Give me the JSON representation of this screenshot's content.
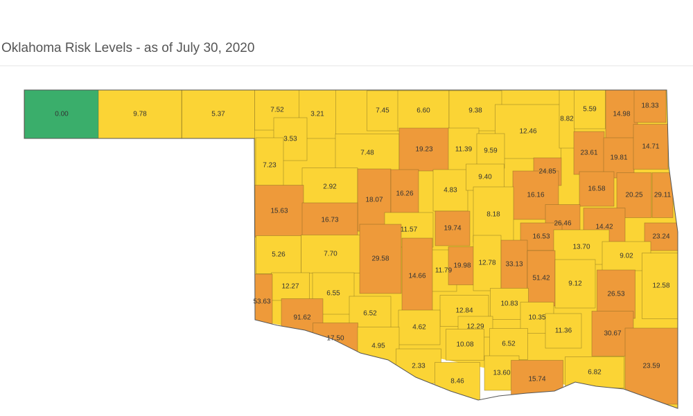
{
  "title": "Oklahoma Risk Levels - as of July 30, 2020",
  "counties": [
    {
      "label": "0.00",
      "color": "#3aae6b"
    },
    {
      "label": "9.78",
      "color": "#fbd435"
    },
    {
      "label": "5.37",
      "color": "#fbd435"
    },
    {
      "label": "7.52",
      "color": "#fbd435"
    },
    {
      "label": "3.21",
      "color": "#fbd435"
    },
    {
      "label": "7.45",
      "color": "#fbd435"
    },
    {
      "label": "6.60",
      "color": "#fbd435"
    },
    {
      "label": "9.38",
      "color": "#fbd435"
    },
    {
      "label": "12.46",
      "color": "#fbd435"
    },
    {
      "label": "8.82",
      "color": "#fbd435"
    },
    {
      "label": "5.59",
      "color": "#fbd435"
    },
    {
      "label": "14.98",
      "color": "#ee9a3a"
    },
    {
      "label": "18.33",
      "color": "#ee9a3a"
    },
    {
      "label": "3.53",
      "color": "#fbd435"
    },
    {
      "label": "7.48",
      "color": "#fbd435"
    },
    {
      "label": "19.23",
      "color": "#ee9a3a"
    },
    {
      "label": "11.39",
      "color": "#fbd435"
    },
    {
      "label": "9.59",
      "color": "#fbd435"
    },
    {
      "label": "7.23",
      "color": "#fbd435"
    },
    {
      "label": "23.61",
      "color": "#ee9a3a"
    },
    {
      "label": "19.81",
      "color": "#ee9a3a"
    },
    {
      "label": "14.71",
      "color": "#ee9a3a"
    },
    {
      "label": "24.85",
      "color": "#ee9a3a"
    },
    {
      "label": "2.92",
      "color": "#fbd435"
    },
    {
      "label": "18.07",
      "color": "#ee9a3a"
    },
    {
      "label": "16.26",
      "color": "#ee9a3a"
    },
    {
      "label": "4.83",
      "color": "#fbd435"
    },
    {
      "label": "9.40",
      "color": "#fbd435"
    },
    {
      "label": "16.16",
      "color": "#ee9a3a"
    },
    {
      "label": "16.58",
      "color": "#ee9a3a"
    },
    {
      "label": "20.25",
      "color": "#ee9a3a"
    },
    {
      "label": "29.11",
      "color": "#ee9a3a"
    },
    {
      "label": "15.63",
      "color": "#ee9a3a"
    },
    {
      "label": "16.73",
      "color": "#ee9a3a"
    },
    {
      "label": "11.57",
      "color": "#fbd435"
    },
    {
      "label": "19.74",
      "color": "#ee9a3a"
    },
    {
      "label": "8.18",
      "color": "#fbd435"
    },
    {
      "label": "26.46",
      "color": "#ee9a3a"
    },
    {
      "label": "14.42",
      "color": "#ee9a3a"
    },
    {
      "label": "23.24",
      "color": "#ee9a3a"
    },
    {
      "label": "16.53",
      "color": "#ee9a3a"
    },
    {
      "label": "5.26",
      "color": "#fbd435"
    },
    {
      "label": "7.70",
      "color": "#fbd435"
    },
    {
      "label": "29.58",
      "color": "#ee9a3a"
    },
    {
      "label": "11.79",
      "color": "#fbd435"
    },
    {
      "label": "19.98",
      "color": "#ee9a3a"
    },
    {
      "label": "12.78",
      "color": "#fbd435"
    },
    {
      "label": "33.13",
      "color": "#ee9a3a"
    },
    {
      "label": "13.70",
      "color": "#fbd435"
    },
    {
      "label": "9.02",
      "color": "#fbd435"
    },
    {
      "label": "51.42",
      "color": "#ee9a3a"
    },
    {
      "label": "14.66",
      "color": "#ee9a3a"
    },
    {
      "label": "12.27",
      "color": "#fbd435"
    },
    {
      "label": "6.55",
      "color": "#fbd435"
    },
    {
      "label": "53.63",
      "color": "#ee9a3a"
    },
    {
      "label": "9.12",
      "color": "#fbd435"
    },
    {
      "label": "26.53",
      "color": "#ee9a3a"
    },
    {
      "label": "12.58",
      "color": "#fbd435"
    },
    {
      "label": "91.62",
      "color": "#ee9a3a"
    },
    {
      "label": "6.52",
      "color": "#fbd435"
    },
    {
      "label": "12.84",
      "color": "#fbd435"
    },
    {
      "label": "10.83",
      "color": "#fbd435"
    },
    {
      "label": "10.35",
      "color": "#fbd435"
    },
    {
      "label": "4.62",
      "color": "#fbd435"
    },
    {
      "label": "12.29",
      "color": "#fbd435"
    },
    {
      "label": "11.36",
      "color": "#fbd435"
    },
    {
      "label": "30.67",
      "color": "#ee9a3a"
    },
    {
      "label": "17.50",
      "color": "#ee9a3a"
    },
    {
      "label": "4.95",
      "color": "#fbd435"
    },
    {
      "label": "10.08",
      "color": "#fbd435"
    },
    {
      "label": "6.52",
      "color": "#fbd435"
    },
    {
      "label": "2.33",
      "color": "#fbd435"
    },
    {
      "label": "8.46",
      "color": "#fbd435"
    },
    {
      "label": "13.60",
      "color": "#fbd435"
    },
    {
      "label": "15.74",
      "color": "#ee9a3a"
    },
    {
      "label": "6.82",
      "color": "#fbd435"
    },
    {
      "label": "23.59",
      "color": "#ee9a3a"
    }
  ]
}
